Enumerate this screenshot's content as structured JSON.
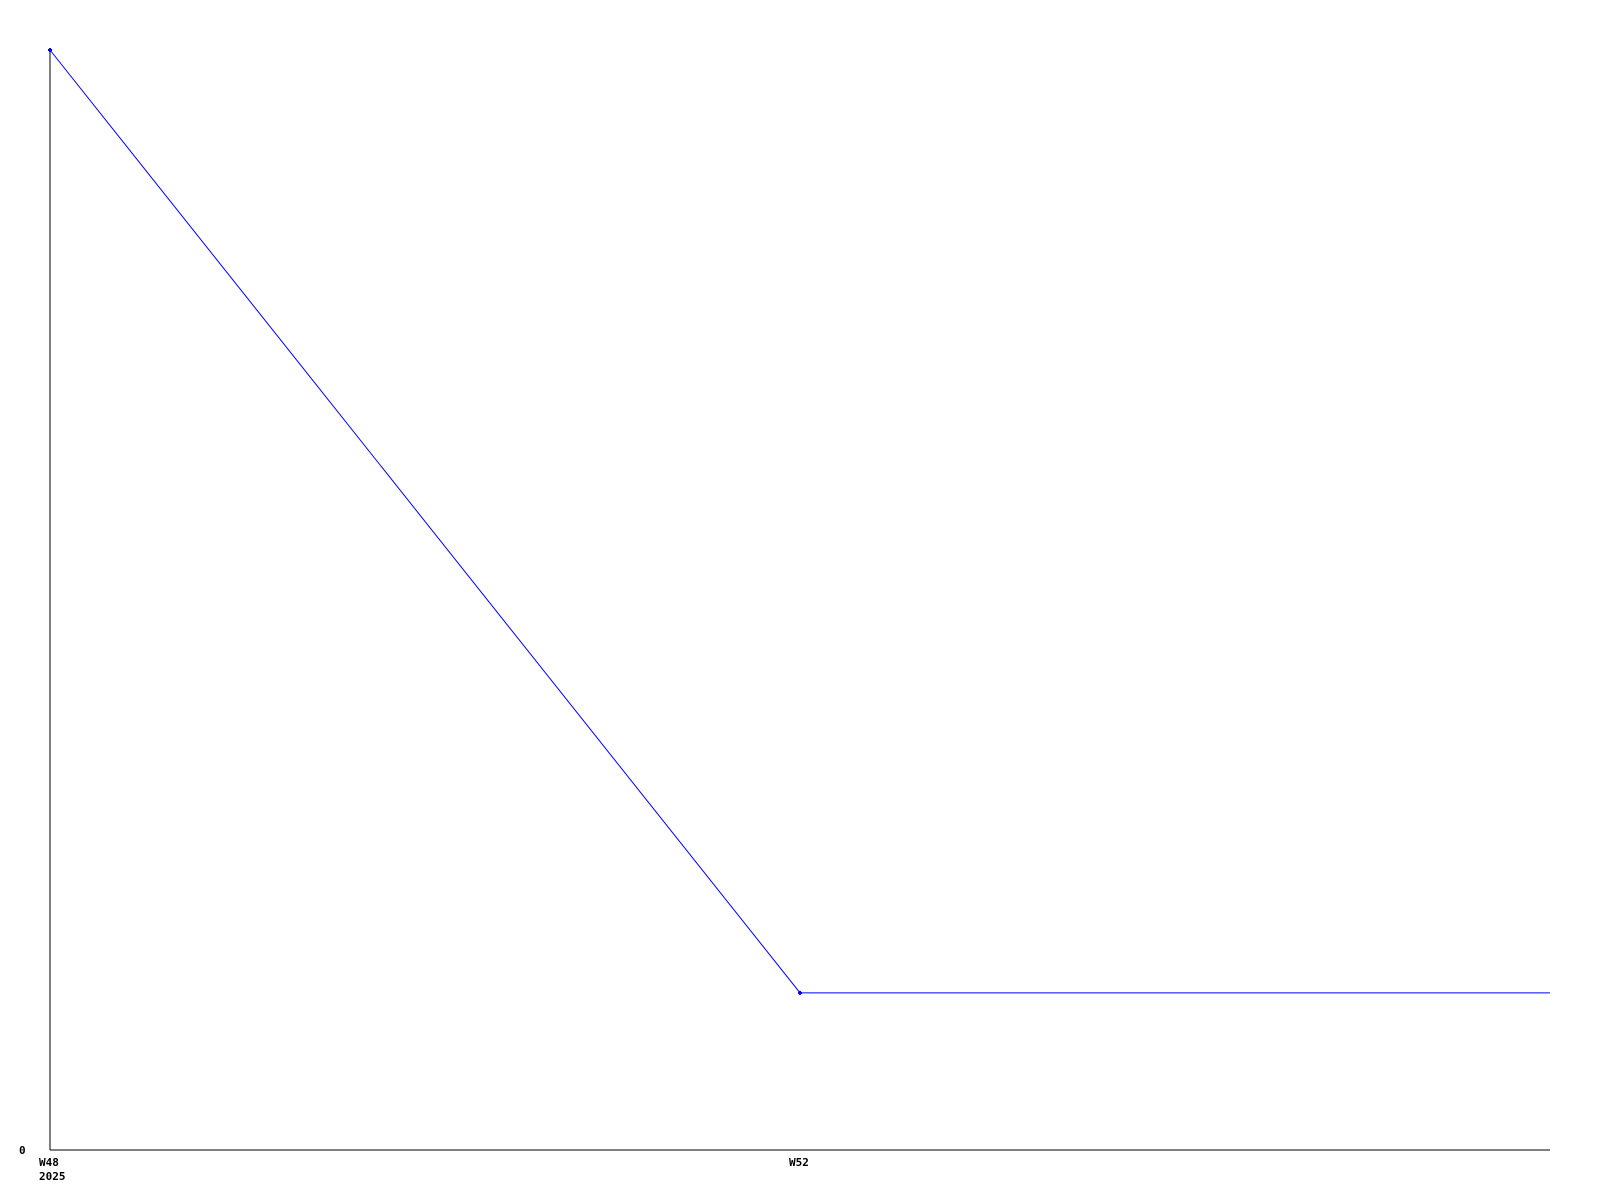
{
  "chart_data": {
    "type": "line",
    "title": "",
    "xlabel": "",
    "ylabel": "",
    "x": [
      "W48",
      "W52"
    ],
    "x_tick_labels": [
      {
        "label": "W48",
        "sublabel": "2025"
      },
      {
        "label": "W52",
        "sublabel": ""
      }
    ],
    "y_tick_labels": [
      "0"
    ],
    "series": [
      {
        "values": [
          7,
          1
        ],
        "color": "#0000ff",
        "extends_flat_to_axis_end": true
      }
    ],
    "ylim": [
      0,
      7
    ],
    "grid": false,
    "legend": "none"
  }
}
